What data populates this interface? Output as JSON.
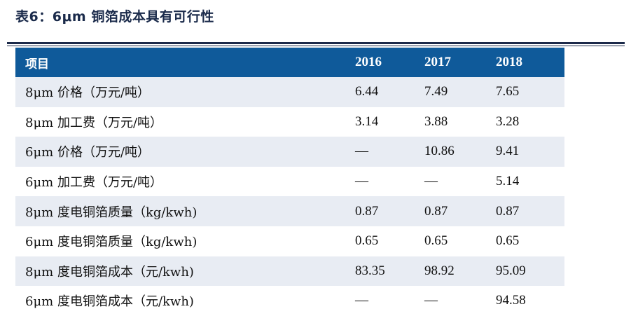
{
  "title": "表6：6μm 铜箔成本具有可行性",
  "table": {
    "headers": [
      "项目",
      "2016",
      "2017",
      "2018"
    ],
    "rows": [
      [
        "8μm 价格（万元/吨）",
        "6.44",
        "7.49",
        "7.65"
      ],
      [
        "8μm 加工费（万元/吨）",
        "3.14",
        "3.88",
        "3.28"
      ],
      [
        "6μm 价格（万元/吨）",
        "—",
        "10.86",
        "9.41"
      ],
      [
        "6μm 加工费（万元/吨）",
        "—",
        "—",
        "5.14"
      ],
      [
        "8μm 度电铜箔质量（kg/kwh)",
        "0.87",
        "0.87",
        "0.87"
      ],
      [
        "6μm 度电铜箔质量（kg/kwh)",
        "0.65",
        "0.65",
        "0.65"
      ],
      [
        "8μm 度电铜箔成本（元/kwh)",
        "83.35",
        "98.92",
        "95.09"
      ],
      [
        "6μm 度电铜箔成本（元/kwh)",
        "—",
        "—",
        "94.58"
      ]
    ]
  },
  "colors": {
    "header_bg": "#0f5a9a",
    "row_shade": "#e8ecf3",
    "rule": "#1c2a4a"
  }
}
